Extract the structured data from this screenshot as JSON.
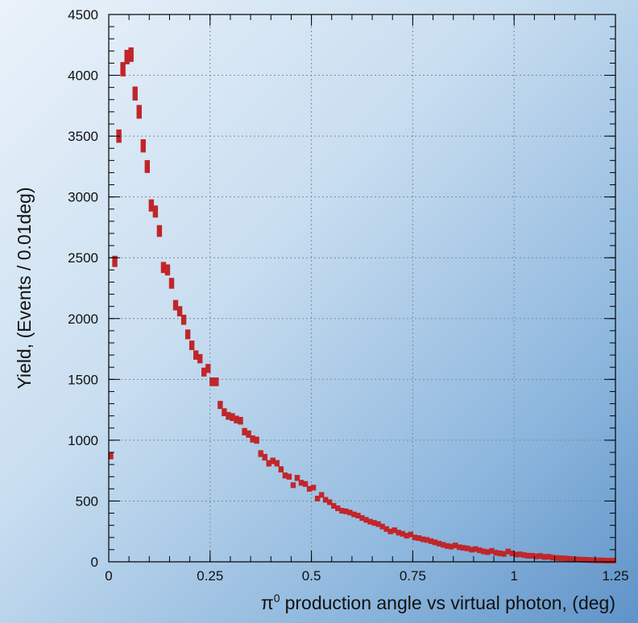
{
  "chart_data": {
    "type": "scatter",
    "xlabel": "production angle vs virtual photon, (deg)",
    "xlabel_symbol": "π",
    "xlabel_superscript": "0",
    "ylabel": "Yield, (Events / 0.01deg)",
    "xlim": [
      0,
      1.25
    ],
    "ylim": [
      0,
      4500
    ],
    "grid": true,
    "x_ticks": [
      0,
      0.25,
      0.5,
      0.75,
      1,
      1.25
    ],
    "x_tick_labels": [
      "0",
      "0.25",
      "0.5",
      "0.75",
      "1",
      "1.25"
    ],
    "y_ticks": [
      0,
      500,
      1000,
      1500,
      2000,
      2500,
      3000,
      3500,
      4000,
      4500
    ],
    "y_tick_labels": [
      "0",
      "500",
      "1000",
      "1500",
      "2000",
      "2500",
      "3000",
      "3500",
      "4000",
      "4500"
    ],
    "marker_color": "#c0262a",
    "series": [
      {
        "x": [
          0.005,
          0.015,
          0.025,
          0.035,
          0.045,
          0.055,
          0.065,
          0.075,
          0.085,
          0.095,
          0.105,
          0.115,
          0.125,
          0.135,
          0.145,
          0.155,
          0.165,
          0.175,
          0.185,
          0.195,
          0.205,
          0.215,
          0.225,
          0.235,
          0.245,
          0.255,
          0.265,
          0.275,
          0.285,
          0.295,
          0.305,
          0.315,
          0.325,
          0.335,
          0.345,
          0.355,
          0.365,
          0.375,
          0.385,
          0.395,
          0.405,
          0.415,
          0.425,
          0.435,
          0.445,
          0.455,
          0.465,
          0.475,
          0.485,
          0.495,
          0.505,
          0.515,
          0.525,
          0.535,
          0.545,
          0.555,
          0.565,
          0.575,
          0.585,
          0.595,
          0.605,
          0.615,
          0.625,
          0.635,
          0.645,
          0.655,
          0.665,
          0.675,
          0.685,
          0.695,
          0.705,
          0.715,
          0.725,
          0.735,
          0.745,
          0.755,
          0.765,
          0.775,
          0.785,
          0.795,
          0.805,
          0.815,
          0.825,
          0.835,
          0.845,
          0.855,
          0.865,
          0.875,
          0.885,
          0.895,
          0.905,
          0.915,
          0.925,
          0.935,
          0.945,
          0.955,
          0.965,
          0.975,
          0.985,
          0.995,
          1.005,
          1.015,
          1.025,
          1.035,
          1.045,
          1.055,
          1.065,
          1.075,
          1.085,
          1.095,
          1.105,
          1.115,
          1.125,
          1.135,
          1.145,
          1.155,
          1.165,
          1.175,
          1.185,
          1.195,
          1.205,
          1.215,
          1.225,
          1.235,
          1.245
        ],
        "values": [
          870,
          2470,
          3500,
          4050,
          4150,
          4170,
          3850,
          3700,
          3420,
          3250,
          2930,
          2880,
          2720,
          2420,
          2400,
          2290,
          2110,
          2060,
          1990,
          1870,
          1780,
          1700,
          1670,
          1560,
          1590,
          1480,
          1480,
          1290,
          1230,
          1200,
          1190,
          1170,
          1160,
          1070,
          1050,
          1010,
          1000,
          890,
          860,
          810,
          830,
          810,
          760,
          710,
          700,
          630,
          690,
          650,
          640,
          600,
          610,
          520,
          550,
          510,
          490,
          460,
          440,
          420,
          415,
          405,
          390,
          380,
          360,
          345,
          330,
          320,
          310,
          290,
          270,
          250,
          260,
          240,
          230,
          215,
          225,
          200,
          195,
          185,
          180,
          170,
          160,
          150,
          140,
          130,
          125,
          135,
          120,
          115,
          110,
          100,
          105,
          95,
          85,
          80,
          90,
          75,
          70,
          65,
          85,
          70,
          60,
          62,
          55,
          50,
          50,
          45,
          48,
          40,
          42,
          35,
          32,
          30,
          28,
          25,
          22,
          20,
          18,
          17,
          15,
          14,
          12,
          12,
          10,
          10,
          10
        ]
      }
    ]
  }
}
